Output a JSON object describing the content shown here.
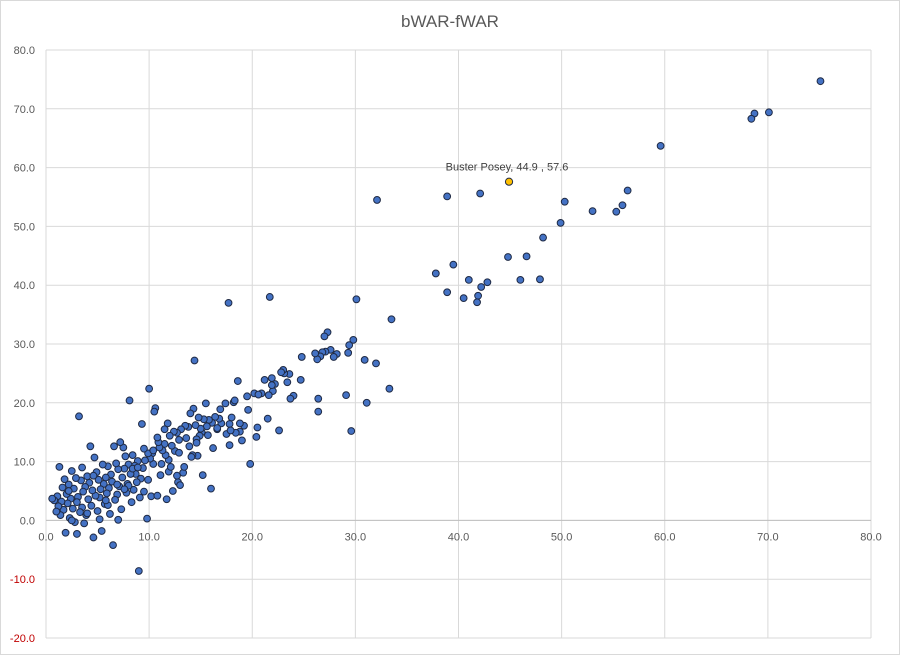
{
  "chart_data": {
    "type": "scatter",
    "title": "bWAR-fWAR",
    "xlabel": "",
    "ylabel": "",
    "xlim": [
      0,
      80
    ],
    "ylim": [
      -20,
      80
    ],
    "xticks": [
      "0.0",
      "10.0",
      "20.0",
      "30.0",
      "40.0",
      "50.0",
      "60.0",
      "70.0",
      "80.0"
    ],
    "yticks": [
      "80.0",
      "70.0",
      "60.0",
      "50.0",
      "40.0",
      "30.0",
      "20.0",
      "10.0",
      "0.0",
      "-10.0",
      "-20.0"
    ],
    "negative_tick_color": "#c00000",
    "grid": true,
    "point_color": "#4472c4",
    "highlight_color": "#ffc000",
    "highlight": {
      "label": "Buster Posey, 44.9 , 57.6",
      "x": 44.9,
      "y": 57.6
    },
    "points": [
      [
        75.1,
        74.7
      ],
      [
        70.1,
        69.4
      ],
      [
        68.7,
        69.2
      ],
      [
        68.4,
        68.3
      ],
      [
        59.6,
        63.7
      ],
      [
        56.4,
        56.1
      ],
      [
        55.9,
        53.6
      ],
      [
        55.3,
        52.5
      ],
      [
        53.0,
        52.6
      ],
      [
        50.3,
        54.2
      ],
      [
        49.9,
        50.6
      ],
      [
        48.2,
        48.1
      ],
      [
        47.9,
        41.0
      ],
      [
        46.6,
        44.9
      ],
      [
        46.0,
        40.9
      ],
      [
        44.8,
        44.8
      ],
      [
        42.8,
        40.5
      ],
      [
        42.2,
        39.7
      ],
      [
        41.9,
        38.2
      ],
      [
        41.8,
        37.1
      ],
      [
        41.0,
        40.9
      ],
      [
        40.5,
        37.8
      ],
      [
        39.5,
        43.5
      ],
      [
        38.9,
        38.8
      ],
      [
        37.8,
        42.0
      ],
      [
        42.1,
        55.6
      ],
      [
        38.9,
        55.1
      ],
      [
        32.1,
        54.5
      ],
      [
        33.5,
        34.2
      ],
      [
        33.3,
        22.4
      ],
      [
        32.0,
        26.7
      ],
      [
        31.1,
        20.0
      ],
      [
        30.9,
        27.3
      ],
      [
        30.1,
        37.6
      ],
      [
        29.8,
        30.7
      ],
      [
        29.6,
        15.2
      ],
      [
        29.4,
        29.8
      ],
      [
        29.3,
        28.5
      ],
      [
        29.1,
        21.3
      ],
      [
        28.2,
        28.3
      ],
      [
        27.9,
        27.8
      ],
      [
        27.6,
        29.0
      ],
      [
        27.3,
        32.0
      ],
      [
        27.1,
        28.7
      ],
      [
        27.0,
        31.3
      ],
      [
        26.8,
        28.6
      ],
      [
        26.6,
        27.9
      ],
      [
        26.3,
        27.4
      ],
      [
        26.1,
        28.4
      ],
      [
        26.4,
        18.5
      ],
      [
        26.4,
        20.7
      ],
      [
        24.8,
        27.8
      ],
      [
        24.7,
        23.9
      ],
      [
        24.0,
        21.2
      ],
      [
        23.7,
        20.7
      ],
      [
        23.6,
        24.9
      ],
      [
        23.4,
        23.5
      ],
      [
        23.1,
        25.0
      ],
      [
        23.0,
        25.6
      ],
      [
        22.8,
        25.2
      ],
      [
        22.6,
        15.3
      ],
      [
        22.2,
        23.2
      ],
      [
        22.0,
        22.0
      ],
      [
        21.9,
        24.2
      ],
      [
        21.7,
        38.0
      ],
      [
        21.6,
        21.3
      ],
      [
        21.5,
        17.3
      ],
      [
        21.2,
        23.9
      ],
      [
        20.9,
        21.6
      ],
      [
        20.5,
        15.8
      ],
      [
        20.4,
        14.2
      ],
      [
        20.2,
        21.6
      ],
      [
        19.8,
        9.6
      ],
      [
        19.6,
        18.8
      ],
      [
        19.5,
        21.1
      ],
      [
        19.2,
        16.1
      ],
      [
        18.8,
        16.5
      ],
      [
        18.8,
        15.1
      ],
      [
        18.6,
        23.7
      ],
      [
        18.4,
        14.9
      ],
      [
        18.2,
        20.1
      ],
      [
        18.0,
        17.5
      ],
      [
        17.8,
        12.8
      ],
      [
        17.8,
        16.4
      ],
      [
        17.7,
        37.0
      ],
      [
        17.5,
        14.7
      ],
      [
        17.4,
        19.9
      ],
      [
        17.0,
        16.5
      ],
      [
        16.8,
        17.3
      ],
      [
        16.6,
        15.5
      ],
      [
        16.4,
        17.6
      ],
      [
        16.2,
        12.3
      ],
      [
        16.1,
        16.6
      ],
      [
        16.0,
        5.4
      ],
      [
        15.8,
        17.1
      ],
      [
        15.6,
        16.0
      ],
      [
        15.5,
        19.9
      ],
      [
        15.3,
        17.2
      ],
      [
        15.1,
        15.0
      ],
      [
        15.0,
        15.6
      ],
      [
        14.9,
        14.4
      ],
      [
        14.8,
        17.5
      ],
      [
        14.7,
        11.0
      ],
      [
        14.6,
        13.8
      ],
      [
        14.5,
        16.2
      ],
      [
        14.4,
        27.2
      ],
      [
        14.3,
        19.0
      ],
      [
        14.2,
        11.1
      ],
      [
        14.0,
        18.2
      ],
      [
        13.8,
        15.9
      ],
      [
        13.6,
        14.0
      ],
      [
        13.5,
        16.1
      ],
      [
        13.3,
        8.1
      ],
      [
        13.1,
        15.5
      ],
      [
        12.9,
        13.7
      ],
      [
        12.8,
        6.5
      ],
      [
        12.7,
        14.9
      ],
      [
        12.5,
        11.8
      ],
      [
        12.4,
        15.1
      ],
      [
        12.3,
        5.0
      ],
      [
        12.2,
        12.7
      ],
      [
        12.0,
        14.4
      ],
      [
        11.9,
        10.3
      ],
      [
        11.8,
        16.5
      ],
      [
        11.7,
        3.6
      ],
      [
        11.6,
        11.1
      ],
      [
        11.5,
        13.0
      ],
      [
        11.3,
        11.9
      ],
      [
        11.2,
        9.6
      ],
      [
        11.0,
        12.4
      ],
      [
        10.9,
        13.3
      ],
      [
        10.8,
        14.1
      ],
      [
        10.6,
        19.1
      ],
      [
        10.5,
        18.5
      ],
      [
        10.4,
        9.6
      ],
      [
        10.3,
        11.4
      ],
      [
        10.2,
        4.1
      ],
      [
        10.1,
        10.5
      ],
      [
        10.0,
        22.4
      ],
      [
        9.9,
        11.4
      ],
      [
        9.8,
        0.3
      ],
      [
        9.6,
        10.2
      ],
      [
        9.5,
        12.2
      ],
      [
        9.4,
        8.9
      ],
      [
        9.3,
        16.4
      ],
      [
        9.2,
        7.1
      ],
      [
        9.1,
        3.9
      ],
      [
        9.0,
        -8.6
      ],
      [
        8.9,
        10.1
      ],
      [
        8.8,
        6.5
      ],
      [
        8.7,
        7.9
      ],
      [
        8.6,
        9.3
      ],
      [
        8.5,
        5.2
      ],
      [
        8.4,
        11.1
      ],
      [
        8.3,
        3.1
      ],
      [
        8.2,
        7.9
      ],
      [
        8.1,
        20.4
      ],
      [
        8.0,
        9.5
      ],
      [
        7.9,
        6.2
      ],
      [
        7.8,
        4.7
      ],
      [
        7.7,
        10.9
      ],
      [
        7.6,
        8.8
      ],
      [
        7.5,
        12.4
      ],
      [
        7.4,
        7.3
      ],
      [
        7.3,
        1.9
      ],
      [
        7.2,
        13.3
      ],
      [
        7.1,
        5.8
      ],
      [
        7.0,
        8.7
      ],
      [
        6.9,
        4.4
      ],
      [
        6.8,
        9.7
      ],
      [
        6.7,
        3.5
      ],
      [
        6.6,
        12.6
      ],
      [
        6.5,
        -4.2
      ],
      [
        6.4,
        6.6
      ],
      [
        6.3,
        7.8
      ],
      [
        6.2,
        1.1
      ],
      [
        6.1,
        5.5
      ],
      [
        6.0,
        9.2
      ],
      [
        5.9,
        4.6
      ],
      [
        5.8,
        7.3
      ],
      [
        5.7,
        2.8
      ],
      [
        5.6,
        6.2
      ],
      [
        5.5,
        9.5
      ],
      [
        5.4,
        -1.8
      ],
      [
        5.3,
        5.3
      ],
      [
        5.2,
        3.9
      ],
      [
        5.1,
        6.9
      ],
      [
        5.0,
        1.6
      ],
      [
        4.9,
        8.2
      ],
      [
        4.8,
        4.2
      ],
      [
        4.7,
        10.7
      ],
      [
        4.6,
        -2.9
      ],
      [
        4.5,
        5.1
      ],
      [
        4.4,
        2.5
      ],
      [
        4.3,
        12.6
      ],
      [
        4.2,
        6.4
      ],
      [
        4.1,
        3.6
      ],
      [
        4.0,
        7.5
      ],
      [
        3.9,
        0.9
      ],
      [
        3.8,
        5.7
      ],
      [
        3.7,
        -0.5
      ],
      [
        3.6,
        4.9
      ],
      [
        3.5,
        2.2
      ],
      [
        3.4,
        6.8
      ],
      [
        3.3,
        1.4
      ],
      [
        3.2,
        17.7
      ],
      [
        3.1,
        4.0
      ],
      [
        3.0,
        3.1
      ],
      [
        2.9,
        7.2
      ],
      [
        2.8,
        -0.3
      ],
      [
        2.7,
        5.4
      ],
      [
        2.6,
        2.0
      ],
      [
        2.5,
        8.4
      ],
      [
        2.4,
        3.7
      ],
      [
        2.3,
        0.4
      ],
      [
        2.2,
        6.1
      ],
      [
        2.1,
        2.9
      ],
      [
        2.0,
        4.5
      ],
      [
        1.9,
        -2.1
      ],
      [
        1.8,
        7.0
      ],
      [
        1.7,
        1.8
      ],
      [
        1.6,
        5.6
      ],
      [
        1.5,
        3.2
      ],
      [
        1.4,
        0.9
      ],
      [
        1.3,
        9.1
      ],
      [
        1.2,
        2.4
      ],
      [
        1.1,
        4.1
      ],
      [
        1.0,
        1.5
      ],
      [
        0.8,
        3.4
      ],
      [
        0.6,
        3.7
      ],
      [
        3.0,
        -2.3
      ],
      [
        2.5,
        0.0
      ],
      [
        4.0,
        1.2
      ],
      [
        6.0,
        2.6
      ],
      [
        7.0,
        0.1
      ],
      [
        8.0,
        5.9
      ],
      [
        9.5,
        4.9
      ],
      [
        10.8,
        4.2
      ],
      [
        11.9,
        8.3
      ],
      [
        12.7,
        7.6
      ],
      [
        13.4,
        9.1
      ],
      [
        14.1,
        10.8
      ],
      [
        15.2,
        7.7
      ],
      [
        16.9,
        18.9
      ],
      [
        18.3,
        20.4
      ],
      [
        19.0,
        13.6
      ],
      [
        20.6,
        21.4
      ],
      [
        21.9,
        23.0
      ],
      [
        5.2,
        0.2
      ],
      [
        6.9,
        6.1
      ],
      [
        8.4,
        8.8
      ],
      [
        9.9,
        6.9
      ],
      [
        11.1,
        7.7
      ],
      [
        12.1,
        9.1
      ],
      [
        13.0,
        6.0
      ],
      [
        13.9,
        12.6
      ],
      [
        14.6,
        13.2
      ],
      [
        15.7,
        14.5
      ],
      [
        16.6,
        15.7
      ],
      [
        17.9,
        15.3
      ],
      [
        2.2,
        5.0
      ],
      [
        3.5,
        9.0
      ],
      [
        4.6,
        7.6
      ],
      [
        5.8,
        3.4
      ],
      [
        7.6,
        5.3
      ],
      [
        8.9,
        9.0
      ],
      [
        10.4,
        11.9
      ],
      [
        11.5,
        15.5
      ],
      [
        12.9,
        11.5
      ]
    ]
  }
}
